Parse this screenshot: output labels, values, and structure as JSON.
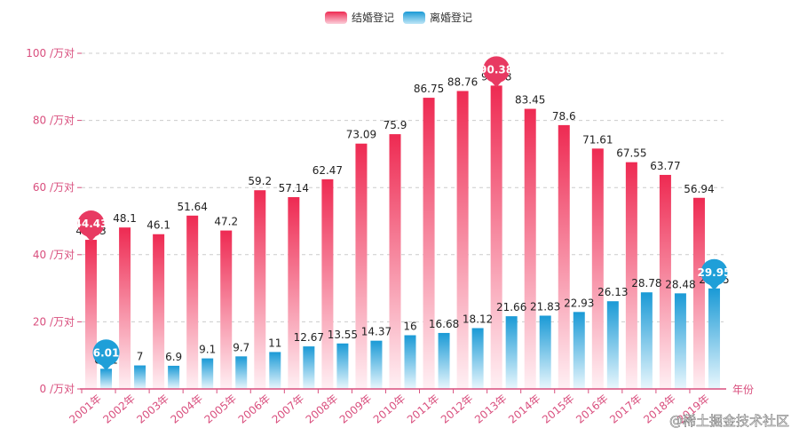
{
  "chart_data": {
    "type": "bar",
    "title": "",
    "legend": [
      "结婚登记",
      "离婚登记"
    ],
    "legend_position": "top-center",
    "xlabel": "年份",
    "ylabel": "",
    "y_unit_suffix": " /万对",
    "ylim": [
      0,
      100
    ],
    "y_ticks": [
      0,
      20,
      40,
      60,
      80,
      100
    ],
    "grid": true,
    "categories": [
      "2001年",
      "2002年",
      "2003年",
      "2004年",
      "2005年",
      "2006年",
      "2007年",
      "2008年",
      "2009年",
      "2010年",
      "2011年",
      "2012年",
      "2013年",
      "2014年",
      "2015年",
      "2016年",
      "2017年",
      "2018年",
      "2019年"
    ],
    "series": [
      {
        "name": "结婚登记",
        "values": [
          44.43,
          48.1,
          46.1,
          51.64,
          47.2,
          59.2,
          57.14,
          62.47,
          73.09,
          75.9,
          86.75,
          88.76,
          90.38,
          83.45,
          78.6,
          71.61,
          67.55,
          63.77,
          56.94
        ],
        "gradient": [
          "#ee2a52",
          "#fff0f4"
        ],
        "marker_color": "#e83a62",
        "markers": [
          {
            "index": 0,
            "label": "44.43"
          },
          {
            "index": 12,
            "label": "90.38"
          }
        ]
      },
      {
        "name": "离婚登记",
        "values": [
          6.01,
          7,
          6.9,
          9.1,
          9.7,
          11,
          12.67,
          13.55,
          14.37,
          16,
          16.68,
          18.12,
          21.66,
          21.83,
          22.93,
          26.13,
          28.78,
          28.48,
          29.95
        ],
        "gradient": [
          "#1a9ad6",
          "#e9f7fd"
        ],
        "marker_color": "#1f9fd8",
        "markers": [
          {
            "index": 0,
            "label": "6.01"
          },
          {
            "index": 18,
            "label": "29.95"
          }
        ]
      }
    ]
  },
  "colors": {
    "axis": "#d94f7e",
    "grid": "#cccccc"
  },
  "watermark": "@稀土掘金技术社区"
}
